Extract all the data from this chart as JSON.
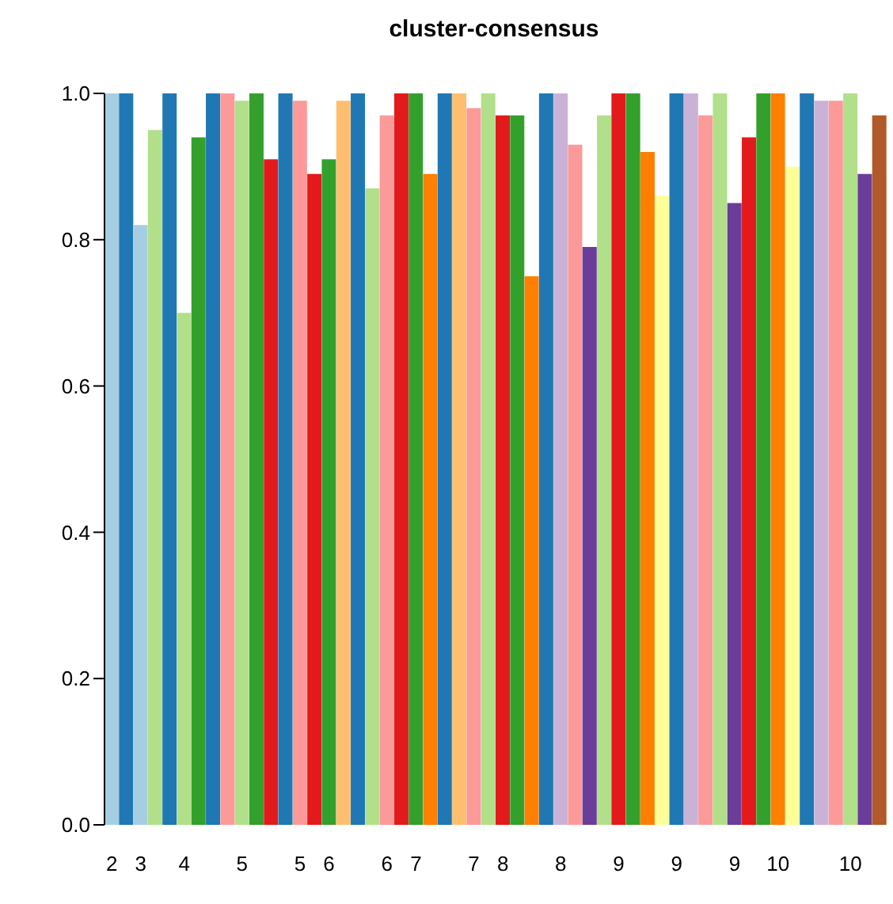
{
  "chart_data": {
    "type": "bar",
    "title": "cluster-consensus",
    "categories": [
      "2",
      null,
      "3",
      null,
      null,
      "4",
      null,
      null,
      null,
      "5",
      null,
      null,
      null,
      "5",
      null,
      "6",
      null,
      null,
      null,
      "6",
      null,
      "7",
      null,
      null,
      null,
      "7",
      null,
      "8",
      null,
      null,
      null,
      "8",
      null,
      null,
      null,
      "9",
      null,
      null,
      null,
      "9",
      null,
      null,
      null,
      "9",
      null,
      null,
      "10",
      null,
      null,
      null,
      null,
      "10",
      null,
      null
    ],
    "values": [
      1.0,
      1.0,
      0.82,
      0.95,
      1.0,
      0.7,
      0.94,
      1.0,
      1.0,
      0.99,
      1.0,
      0.91,
      1.0,
      0.99,
      0.89,
      0.91,
      0.99,
      1.0,
      0.87,
      0.97,
      1.0,
      1.0,
      0.89,
      1.0,
      1.0,
      0.98,
      1.0,
      0.97,
      0.97,
      0.75,
      1.0,
      1.0,
      0.93,
      0.79,
      0.97,
      1.0,
      1.0,
      0.92,
      0.86,
      1.0,
      1.0,
      0.97,
      1.0,
      0.85,
      0.94,
      1.0,
      1.0,
      0.9,
      1.0,
      0.99,
      0.99,
      1.0,
      0.89,
      0.97
    ],
    "colors": [
      "#a6cee3",
      "#1f78b4",
      "#a6cee3",
      "#b2df8a",
      "#1f78b4",
      "#b2df8a",
      "#33a02c",
      "#1f78b4",
      "#fb9a99",
      "#b2df8a",
      "#33a02c",
      "#e31a1c",
      "#1f78b4",
      "#fb9a99",
      "#e31a1c",
      "#33a02c",
      "#fdbf6f",
      "#1f78b4",
      "#b2df8a",
      "#fb9a99",
      "#e31a1c",
      "#33a02c",
      "#ff7f00",
      "#1f78b4",
      "#fdbf6f",
      "#fb9a99",
      "#b2df8a",
      "#e31a1c",
      "#33a02c",
      "#ff7f00",
      "#1f78b4",
      "#cab2d6",
      "#fb9a99",
      "#6a3d9a",
      "#b2df8a",
      "#e31a1c",
      "#33a02c",
      "#ff7f00",
      "#ffff99",
      "#1f78b4",
      "#cab2d6",
      "#fb9a99",
      "#b2df8a",
      "#6a3d9a",
      "#e31a1c",
      "#33a02c",
      "#ff7f00",
      "#ffff99",
      "#1f78b4",
      "#cab2d6",
      "#fb9a99",
      "#b2df8a",
      "#6a3d9a",
      "#b15928"
    ],
    "ylim": [
      0,
      1
    ],
    "yticks": [
      {
        "value": 0,
        "label": "0.0"
      },
      {
        "value": 0.2,
        "label": "0.2"
      },
      {
        "value": 0.4,
        "label": "0.4"
      },
      {
        "value": 0.6,
        "label": "0.6"
      },
      {
        "value": 0.8,
        "label": "0.8"
      },
      {
        "value": 1,
        "label": "1.0"
      }
    ]
  }
}
